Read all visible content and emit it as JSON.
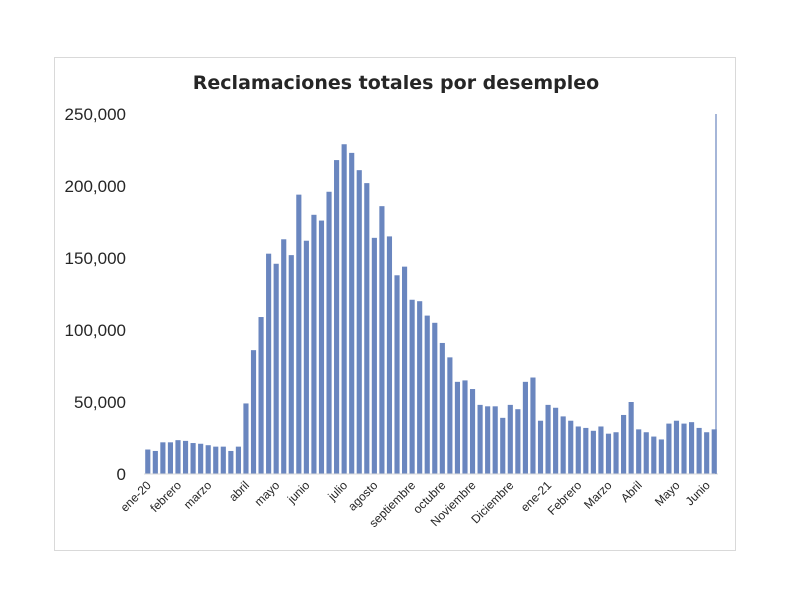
{
  "chart_data": {
    "type": "bar",
    "title": "Reclamaciones totales por desempleo",
    "xlabel": "",
    "ylabel": "",
    "ylim": [
      0,
      250000
    ],
    "yticks": [
      0,
      50000,
      100000,
      150000,
      200000,
      250000
    ],
    "ytick_labels": [
      "0",
      "50,000",
      "100,000",
      "150,000",
      "200,000",
      "250,000"
    ],
    "grid": false,
    "legend": "none",
    "bar_color": "#6a86bf",
    "category_labels": [
      {
        "label": "ene-20",
        "index": 0
      },
      {
        "label": "febrero",
        "index": 4
      },
      {
        "label": "marzo",
        "index": 8
      },
      {
        "label": "abril",
        "index": 13
      },
      {
        "label": "mayo",
        "index": 17
      },
      {
        "label": "junio",
        "index": 21
      },
      {
        "label": "julio",
        "index": 26
      },
      {
        "label": "agosto",
        "index": 30
      },
      {
        "label": "septiembre",
        "index": 35
      },
      {
        "label": "octubre",
        "index": 39
      },
      {
        "label": "Noviembre",
        "index": 43
      },
      {
        "label": "Diciembre",
        "index": 48
      },
      {
        "label": "ene-21",
        "index": 53
      },
      {
        "label": "Febrero",
        "index": 57
      },
      {
        "label": "Marzo",
        "index": 61
      },
      {
        "label": "Abril",
        "index": 65
      },
      {
        "label": "Mayo",
        "index": 70
      },
      {
        "label": "Junio",
        "index": 74
      }
    ],
    "values": [
      17000,
      16000,
      22000,
      22000,
      23500,
      23000,
      21500,
      21000,
      20000,
      19000,
      19000,
      16000,
      19000,
      49000,
      86000,
      109000,
      153000,
      146000,
      163000,
      152000,
      194000,
      162000,
      180000,
      176000,
      196000,
      218000,
      229000,
      223000,
      211000,
      202000,
      164000,
      186000,
      165000,
      138000,
      144000,
      121000,
      120000,
      110000,
      105000,
      91000,
      81000,
      64000,
      65000,
      59000,
      48000,
      47000,
      47000,
      39000,
      48000,
      45000,
      64000,
      67000,
      37000,
      48000,
      46000,
      40000,
      37000,
      33000,
      32000,
      30000,
      33000,
      28000,
      29000,
      41000,
      50000,
      31000,
      29000,
      26000,
      24000,
      35000,
      37000,
      35000,
      36000,
      32000,
      29000,
      31000
    ]
  }
}
